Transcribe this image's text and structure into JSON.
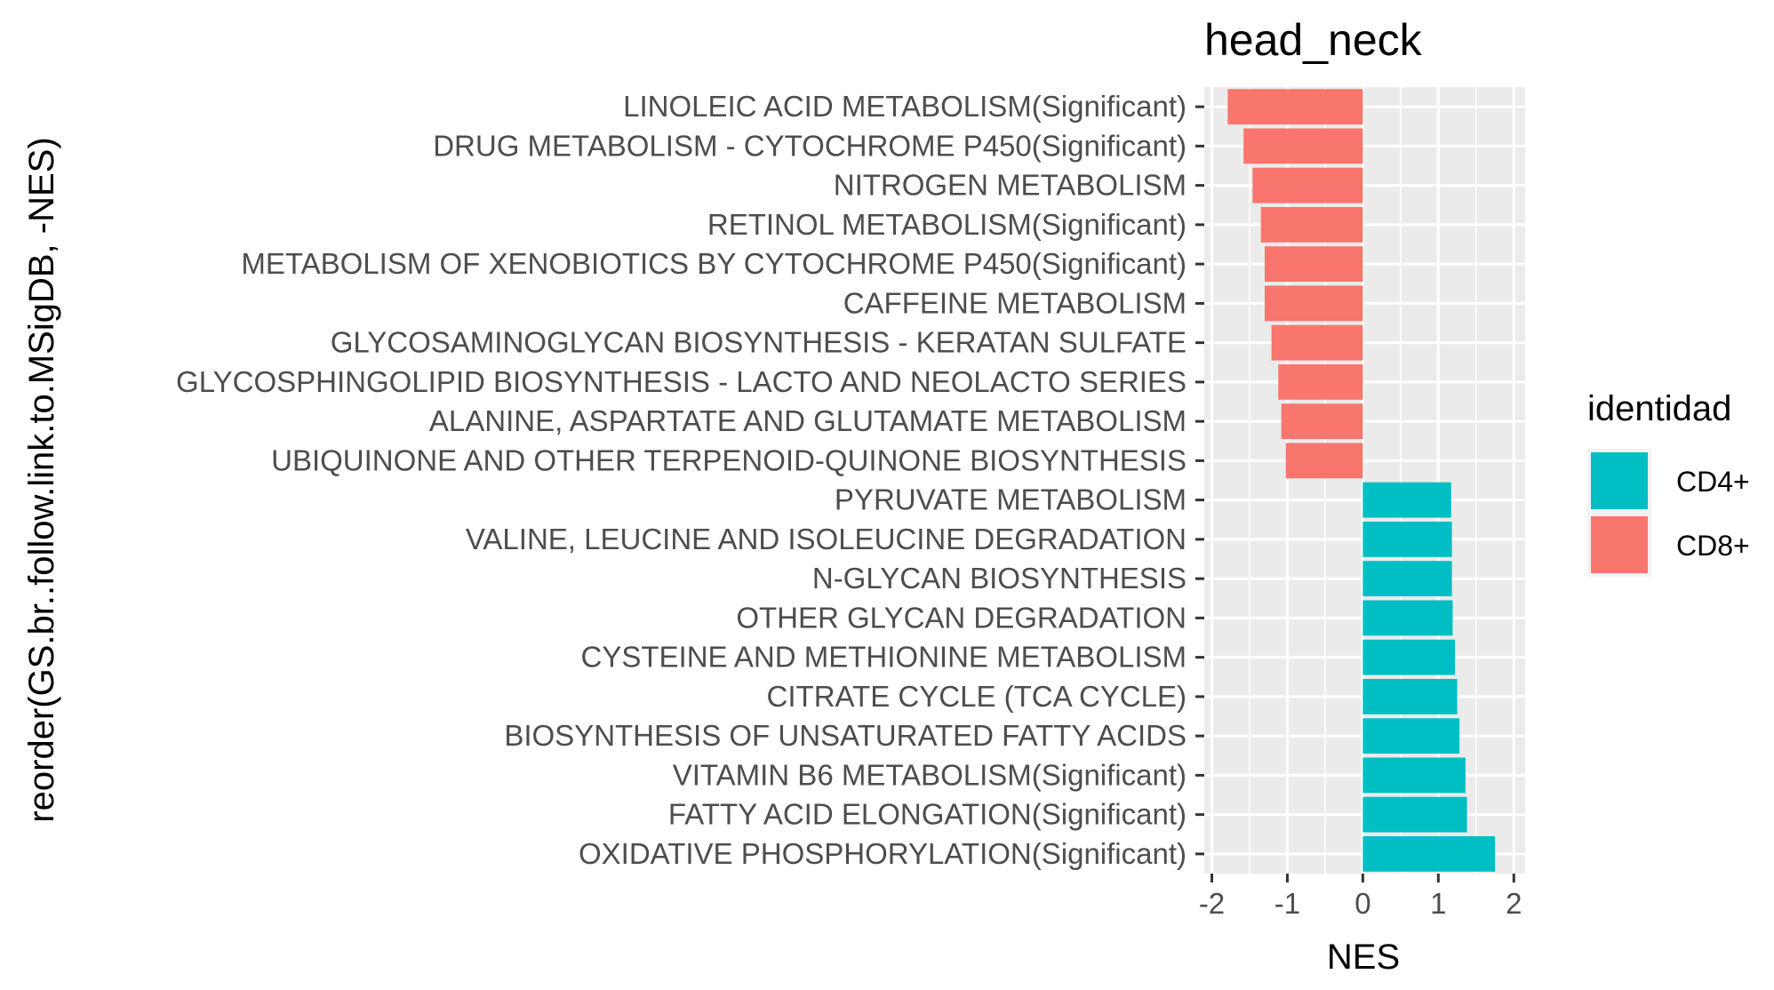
{
  "chart_data": {
    "type": "bar",
    "orientation": "horizontal",
    "title": "head_neck",
    "xlabel": "NES",
    "ylabel": "reorder(GS.br..follow.link.to.MSigDB, -NES)",
    "xlim": [
      -2.1,
      2.15
    ],
    "xticks": [
      -2,
      -1,
      0,
      1,
      2
    ],
    "xtick_labels": [
      "-2",
      "-1",
      "0",
      "1",
      "2"
    ],
    "grid": true,
    "legend": {
      "title": "identidad",
      "position": "right",
      "entries": [
        {
          "label": "CD4+",
          "color": "#00BFC4"
        },
        {
          "label": "CD8+",
          "color": "#F8766D"
        }
      ]
    },
    "categories": [
      "LINOLEIC ACID METABOLISM(Significant)",
      "DRUG METABOLISM - CYTOCHROME P450(Significant)",
      "NITROGEN METABOLISM",
      "RETINOL METABOLISM(Significant)",
      "METABOLISM OF XENOBIOTICS BY CYTOCHROME P450(Significant)",
      "CAFFEINE METABOLISM",
      "GLYCOSAMINOGLYCAN BIOSYNTHESIS - KERATAN SULFATE",
      "GLYCOSPHINGOLIPID BIOSYNTHESIS - LACTO AND NEOLACTO SERIES",
      "ALANINE, ASPARTATE AND GLUTAMATE METABOLISM",
      "UBIQUINONE AND OTHER TERPENOID-QUINONE BIOSYNTHESIS",
      "PYRUVATE METABOLISM",
      "VALINE, LEUCINE AND ISOLEUCINE DEGRADATION",
      "N-GLYCAN BIOSYNTHESIS",
      "OTHER GLYCAN DEGRADATION",
      "CYSTEINE AND METHIONINE METABOLISM",
      "CITRATE CYCLE (TCA CYCLE)",
      "BIOSYNTHESIS OF UNSATURATED FATTY ACIDS",
      "VITAMIN B6 METABOLISM(Significant)",
      "FATTY ACID ELONGATION(Significant)",
      "OXIDATIVE PHOSPHORYLATION(Significant)"
    ],
    "values": [
      -1.79,
      -1.58,
      -1.46,
      -1.35,
      -1.3,
      -1.3,
      -1.21,
      -1.12,
      -1.08,
      -1.02,
      1.17,
      1.18,
      1.18,
      1.19,
      1.22,
      1.25,
      1.28,
      1.36,
      1.38,
      1.75
    ],
    "groups": [
      "CD8+",
      "CD8+",
      "CD8+",
      "CD8+",
      "CD8+",
      "CD8+",
      "CD8+",
      "CD8+",
      "CD8+",
      "CD8+",
      "CD4+",
      "CD4+",
      "CD4+",
      "CD4+",
      "CD4+",
      "CD4+",
      "CD4+",
      "CD4+",
      "CD4+",
      "CD4+"
    ]
  }
}
